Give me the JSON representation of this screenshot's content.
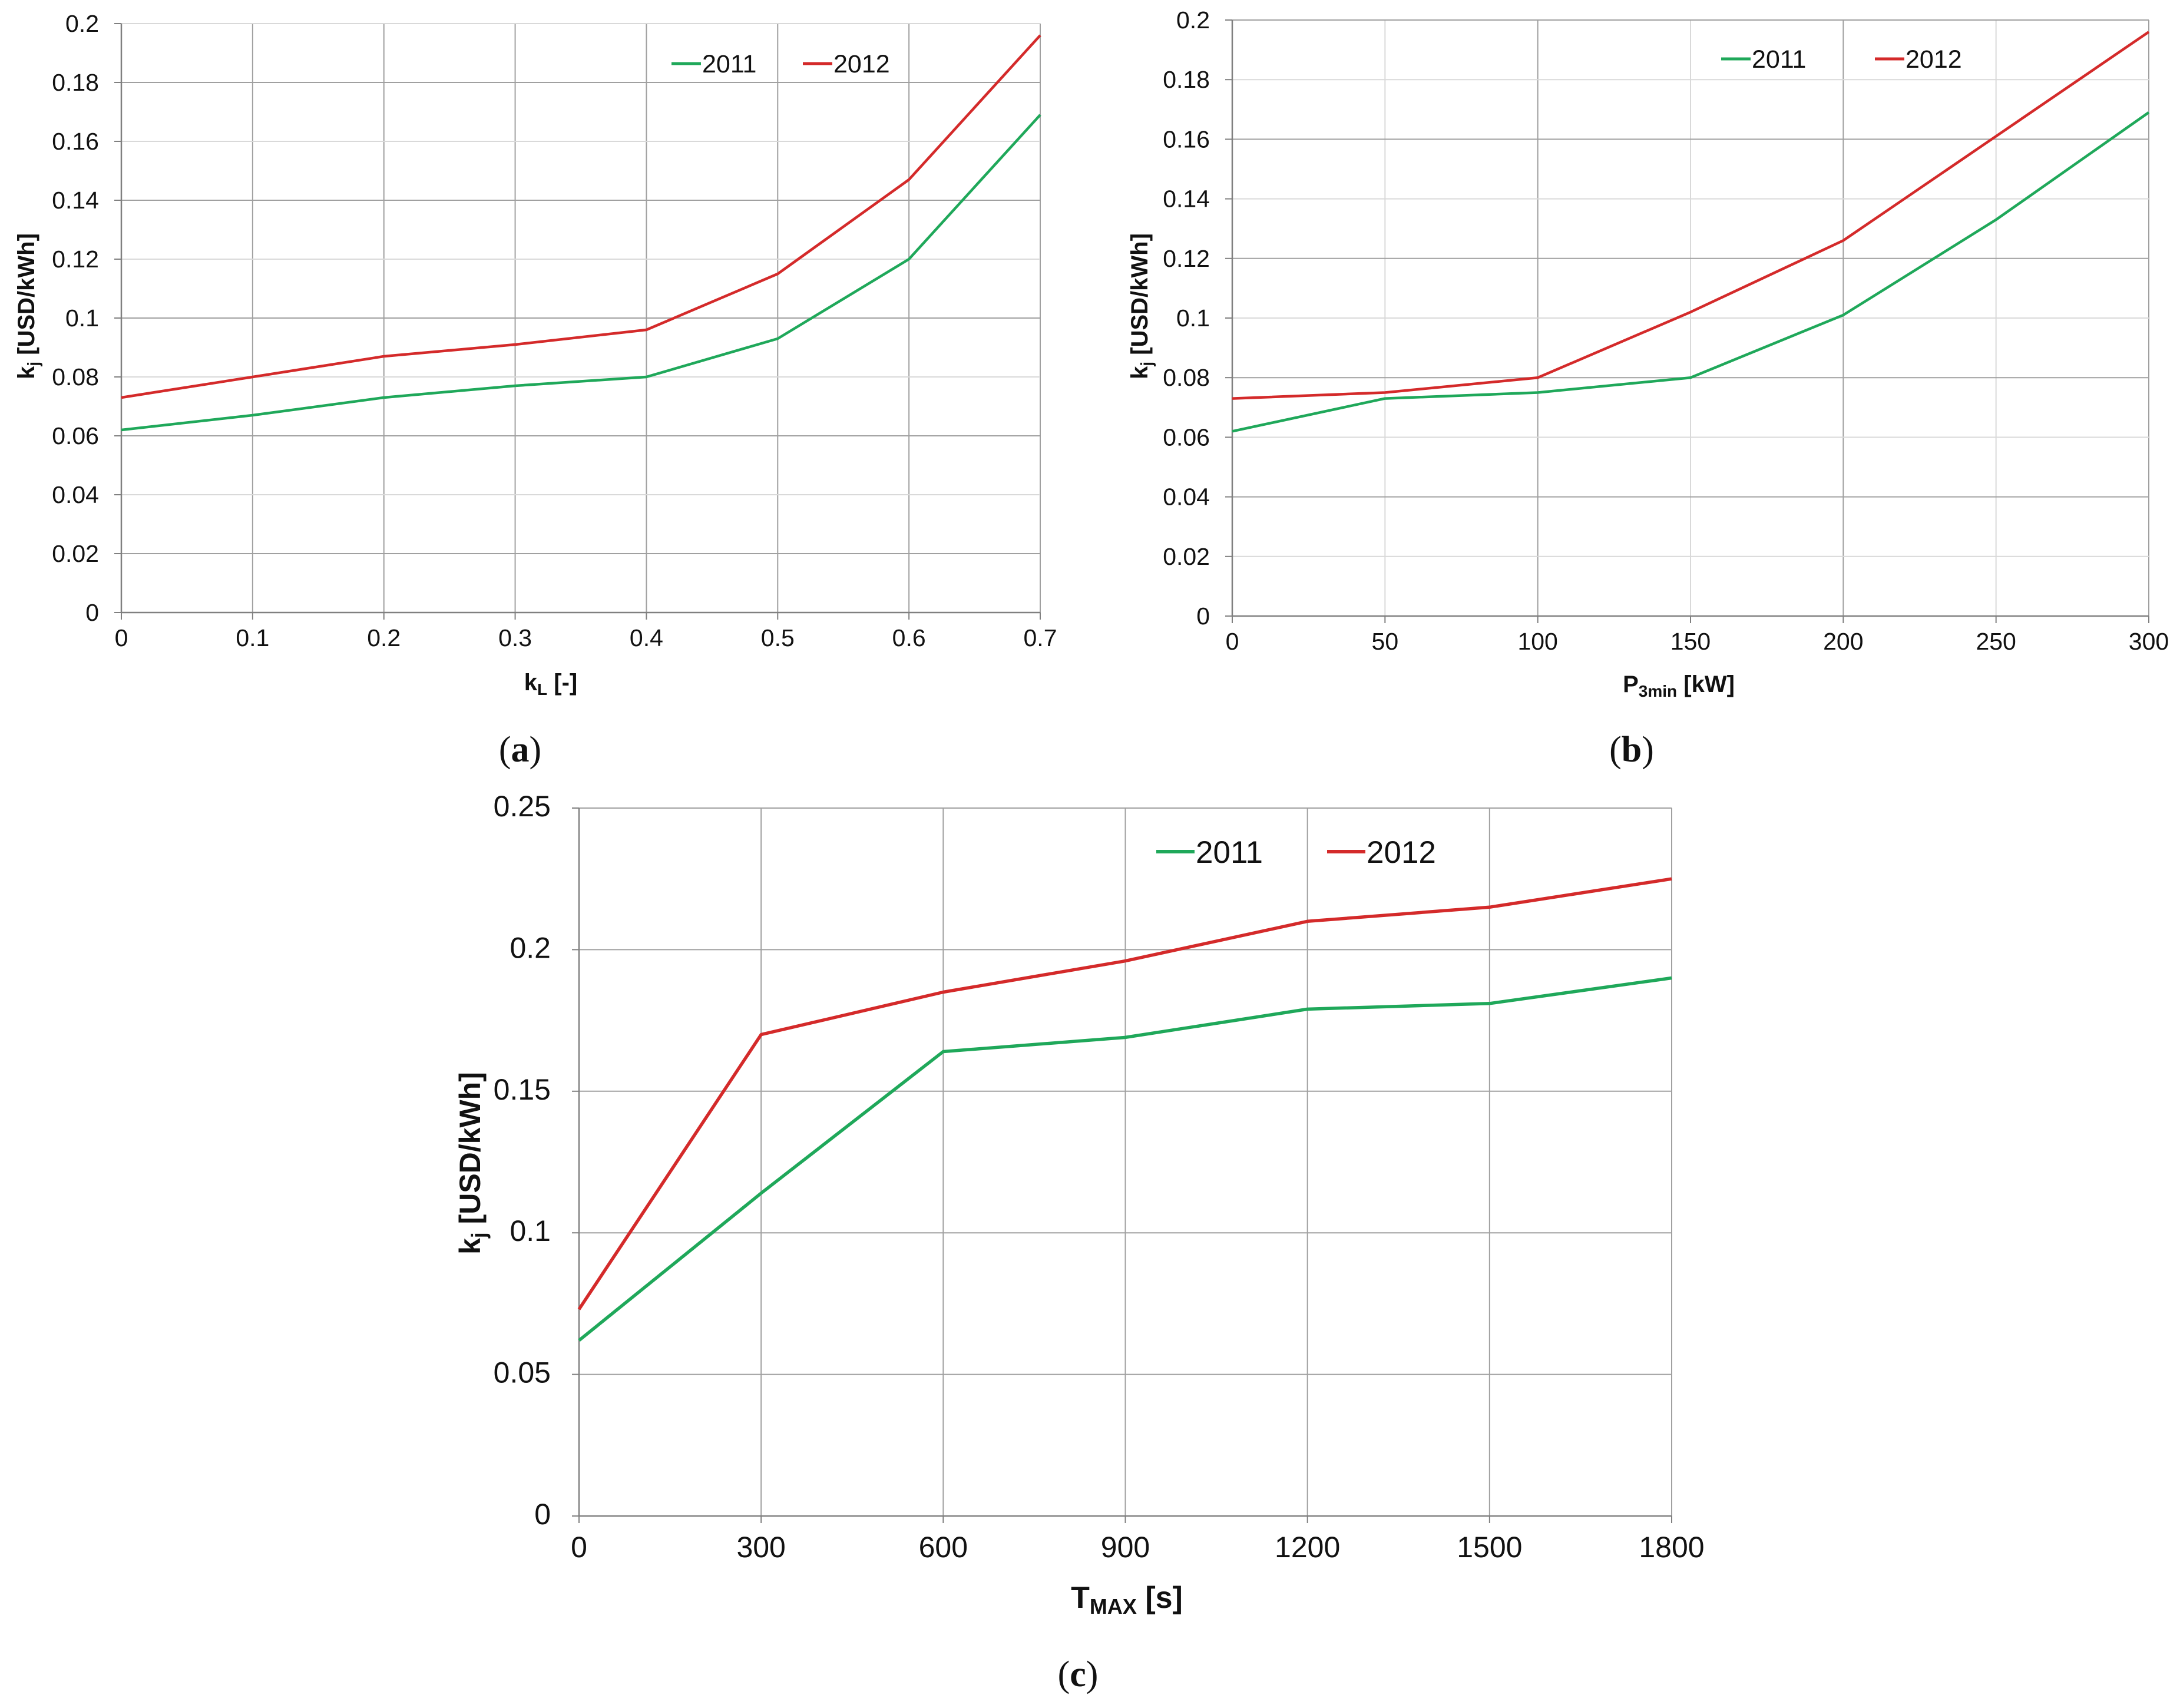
{
  "figure": {
    "panel_a_open": "(",
    "panel_a_letter": "a",
    "panel_a_close": ")",
    "panel_b_open": "(",
    "panel_b_letter": "b",
    "panel_b_close": ")",
    "panel_c_open": "(",
    "panel_c_letter": "c",
    "panel_c_close": ")"
  },
  "colors": {
    "s2011": "#1fa85a",
    "s2012": "#d42a2a",
    "grid_major": "#a0a0a0",
    "grid_minor": "#d9d9d9"
  },
  "chart_data": [
    {
      "id": "a",
      "type": "line",
      "title": "",
      "xlabel": "k",
      "xlabel_sub": "L",
      "xlabel_tail": " [-]",
      "ylabel": "k",
      "ylabel_sub": "j",
      "ylabel_tail": " [USD/kWh]",
      "xlim": [
        0,
        0.7
      ],
      "ylim": [
        0,
        0.2
      ],
      "x_ticks": [
        "0",
        "0.1",
        "0.2",
        "0.3",
        "0.4",
        "0.5",
        "0.6",
        "0.7"
      ],
      "y_ticks": [
        "0",
        "0.02",
        "0.04",
        "0.06",
        "0.08",
        "0.1",
        "0.12",
        "0.14",
        "0.16",
        "0.18",
        "0.2"
      ],
      "x": [
        0,
        0.1,
        0.2,
        0.3,
        0.4,
        0.5,
        0.6,
        0.7
      ],
      "series": [
        {
          "name": "2011",
          "values": [
            0.062,
            0.067,
            0.073,
            0.077,
            0.08,
            0.093,
            0.12,
            0.169
          ]
        },
        {
          "name": "2012",
          "values": [
            0.073,
            0.08,
            0.087,
            0.091,
            0.096,
            0.115,
            0.147,
            0.196
          ]
        }
      ],
      "legend": "top-right"
    },
    {
      "id": "b",
      "type": "line",
      "title": "",
      "xlabel": "P",
      "xlabel_sub": "3min",
      "xlabel_tail": " [kW]",
      "ylabel": "k",
      "ylabel_sub": "j",
      "ylabel_tail": " [USD/kWh]",
      "xlim": [
        0,
        300
      ],
      "ylim": [
        0,
        0.2
      ],
      "x_ticks": [
        "0",
        "50",
        "100",
        "150",
        "200",
        "250",
        "300"
      ],
      "y_ticks": [
        "0",
        "0.02",
        "0.04",
        "0.06",
        "0.08",
        "0.1",
        "0.12",
        "0.14",
        "0.16",
        "0.18",
        "0.2"
      ],
      "x": [
        0,
        50,
        100,
        150,
        200,
        250,
        300
      ],
      "series": [
        {
          "name": "2011",
          "values": [
            0.062,
            0.073,
            0.075,
            0.08,
            0.101,
            0.133,
            0.169
          ]
        },
        {
          "name": "2012",
          "values": [
            0.073,
            0.075,
            0.08,
            0.102,
            0.126,
            0.161,
            0.196
          ]
        }
      ],
      "legend": "top-right"
    },
    {
      "id": "c",
      "type": "line",
      "title": "",
      "xlabel": "T",
      "xlabel_sub": "MAX",
      "xlabel_tail": " [s]",
      "ylabel": "k",
      "ylabel_sub": "j",
      "ylabel_tail": " [USD/kWh]",
      "xlim": [
        0,
        1800
      ],
      "ylim": [
        0,
        0.25
      ],
      "x_ticks": [
        "0",
        "300",
        "600",
        "900",
        "1200",
        "1500",
        "1800"
      ],
      "y_ticks": [
        "0",
        "0.05",
        "0.1",
        "0.15",
        "0.2",
        "0.25"
      ],
      "x": [
        0,
        300,
        600,
        900,
        1200,
        1500,
        1800
      ],
      "series": [
        {
          "name": "2011",
          "values": [
            0.062,
            0.114,
            0.164,
            0.169,
            0.179,
            0.181,
            0.19
          ]
        },
        {
          "name": "2012",
          "values": [
            0.073,
            0.17,
            0.185,
            0.196,
            0.21,
            0.215,
            0.225
          ]
        }
      ],
      "legend": "top-right"
    }
  ]
}
